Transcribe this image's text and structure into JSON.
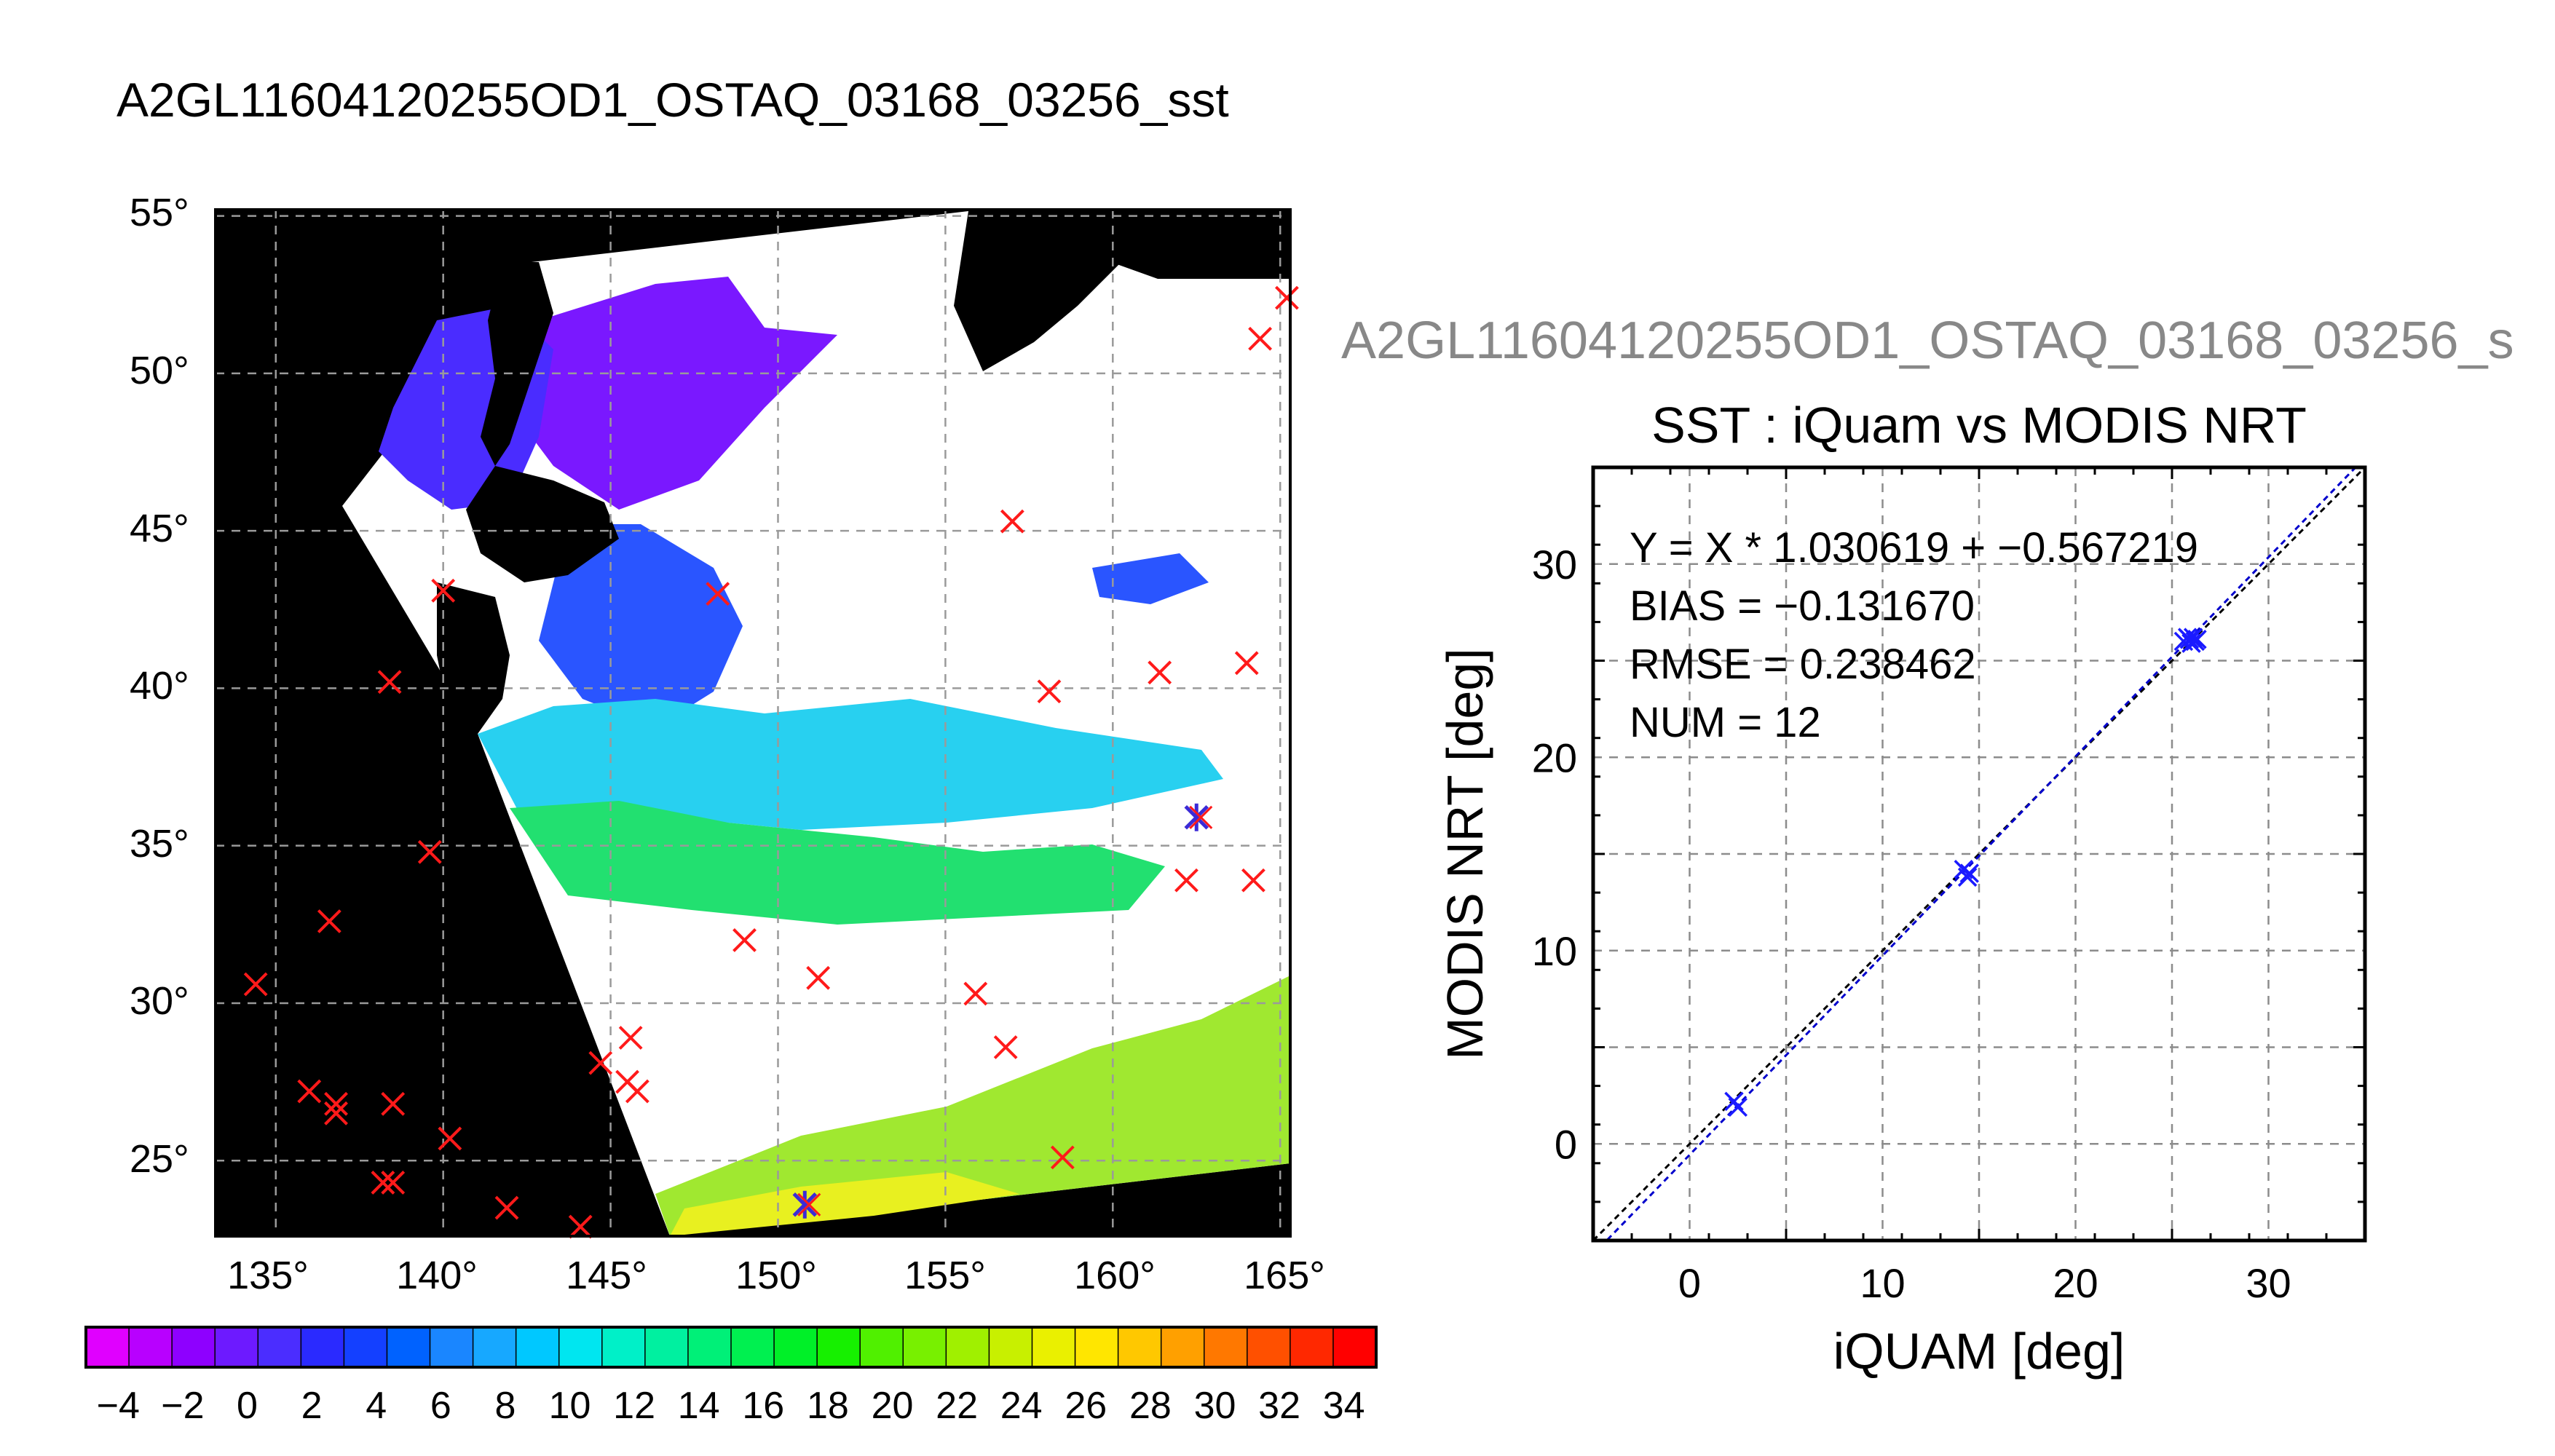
{
  "map_panel": {
    "title": "A2GL11604120255OD1_OSTAQ_03168_03256_sst",
    "lat_ticks": [
      "55°",
      "50°",
      "45°",
      "40°",
      "35°",
      "30°",
      "25°"
    ],
    "lon_ticks": [
      "135°",
      "140°",
      "145°",
      "150°",
      "155°",
      "160°",
      "165°"
    ],
    "lat_values": [
      55,
      50,
      45,
      40,
      35,
      30,
      25
    ],
    "lon_values": [
      135,
      140,
      145,
      150,
      155,
      160,
      165
    ],
    "lon_range": [
      133.2,
      165.3
    ],
    "lat_range": [
      22.6,
      55.2
    ],
    "grid": true,
    "matchup_marker_color": "#ff1a1a",
    "matched_marker_color": "#3b2bd6",
    "matchups_unused": [
      [
        134.4,
        30.6
      ],
      [
        136.0,
        27.2
      ],
      [
        136.8,
        26.8
      ],
      [
        136.8,
        26.5
      ],
      [
        136.6,
        32.6
      ],
      [
        138.5,
        26.8
      ],
      [
        138.2,
        24.3
      ],
      [
        138.5,
        24.3
      ],
      [
        138.4,
        40.2
      ],
      [
        139.6,
        34.8
      ],
      [
        140.2,
        25.7
      ],
      [
        140.0,
        43.1
      ],
      [
        141.9,
        23.5
      ],
      [
        144.1,
        22.9
      ],
      [
        144.7,
        28.1
      ],
      [
        145.5,
        27.5
      ],
      [
        145.8,
        27.2
      ],
      [
        145.6,
        28.9
      ],
      [
        148.2,
        43.0
      ],
      [
        149.0,
        32.0
      ],
      [
        151.2,
        30.8
      ],
      [
        155.9,
        30.3
      ],
      [
        156.8,
        28.6
      ],
      [
        157.0,
        45.3
      ],
      [
        158.1,
        39.9
      ],
      [
        158.5,
        25.1
      ],
      [
        161.4,
        40.5
      ],
      [
        162.2,
        33.9
      ],
      [
        164.0,
        40.8
      ],
      [
        164.2,
        33.9
      ],
      [
        164.4,
        51.1
      ],
      [
        165.2,
        52.4
      ]
    ],
    "matchups_used": [
      [
        150.8,
        23.6
      ],
      [
        162.5,
        35.9
      ]
    ]
  },
  "colorbar": {
    "tick_labels": [
      "−4",
      "−2",
      "0",
      "2",
      "4",
      "6",
      "8",
      "10",
      "12",
      "14",
      "16",
      "18",
      "20",
      "22",
      "24",
      "26",
      "28",
      "30",
      "32",
      "34"
    ],
    "range": [
      -5,
      35
    ],
    "colors": [
      "#e000ff",
      "#b800ff",
      "#8e00ff",
      "#6d1aff",
      "#4b2dff",
      "#2a2aff",
      "#1440ff",
      "#0062ff",
      "#1a86ff",
      "#17a8ff",
      "#00c8ff",
      "#00e6f0",
      "#00f0c8",
      "#00f0a0",
      "#00f078",
      "#00f050",
      "#00f028",
      "#16f000",
      "#50f000",
      "#78f000",
      "#a0f000",
      "#c8f000",
      "#eaf000",
      "#ffe600",
      "#ffc800",
      "#ffa000",
      "#ff7800",
      "#ff5000",
      "#ff2800",
      "#ff0000"
    ]
  },
  "scatter_panel": {
    "header": "A2GL11604120255OD1_OSTAQ_03168_03256_s"
  },
  "chart_data": {
    "type": "scatter",
    "title": "SST : iQuam vs MODIS NRT",
    "xlabel": "iQUAM [deg]",
    "ylabel": "MODIS NRT [deg]",
    "xlim": [
      -5,
      35
    ],
    "ylim": [
      -5,
      35
    ],
    "xticks": [
      0,
      10,
      20,
      30
    ],
    "yticks": [
      0,
      10,
      20,
      30
    ],
    "grid": true,
    "points": [
      {
        "x": 2.3,
        "y": 2.2
      },
      {
        "x": 2.5,
        "y": 1.9
      },
      {
        "x": 14.2,
        "y": 14.2
      },
      {
        "x": 14.4,
        "y": 13.8
      },
      {
        "x": 14.5,
        "y": 14.0
      },
      {
        "x": 25.6,
        "y": 26.0
      },
      {
        "x": 25.8,
        "y": 26.2
      },
      {
        "x": 25.9,
        "y": 26.1
      },
      {
        "x": 26.0,
        "y": 25.9
      },
      {
        "x": 26.1,
        "y": 26.2
      },
      {
        "x": 26.2,
        "y": 26.0
      },
      {
        "x": 26.3,
        "y": 26.1
      }
    ],
    "fit": {
      "slope": 1.030619,
      "intercept": -0.567219
    },
    "annotations": [
      "Y = X * 1.030619 + −0.567219",
      "BIAS = −0.131670",
      "RMSE = 0.238462",
      "NUM = 12"
    ],
    "marker_color": "#1a1aff",
    "fit_line_color": "#0000cc"
  }
}
